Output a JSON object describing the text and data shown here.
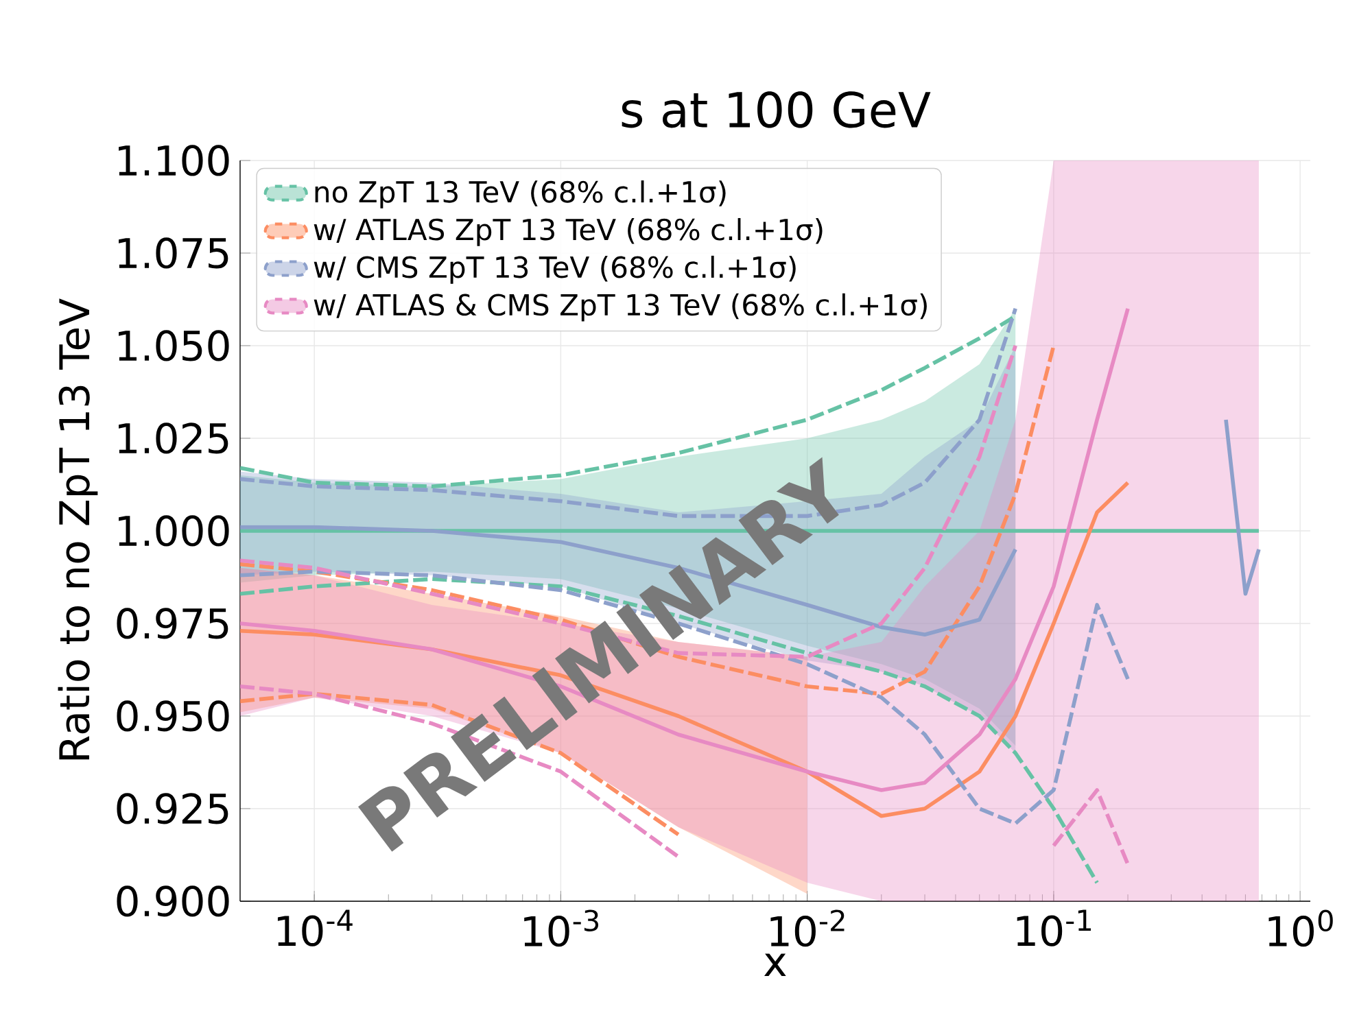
{
  "chart_data": {
    "type": "line",
    "title": "s at 100 GeV",
    "xlabel": "x",
    "ylabel": "Ratio to no ZpT 13 TeV",
    "annotations": [
      "PRELIMINARY"
    ],
    "log": "x",
    "grid": true,
    "legend": "top left",
    "line_style": "solid",
    "xlim": [
      5e-05,
      1.1
    ],
    "ylim": [
      0.9,
      1.1
    ],
    "xticks": [
      {
        "value": 0.0001,
        "label": "10$^{-4}$"
      },
      {
        "value": 0.001,
        "label": "10$^{-3}$"
      },
      {
        "value": 0.01,
        "label": "10$^{-2}$"
      },
      {
        "value": 0.1,
        "label": "10$^{-1}$"
      },
      {
        "value": 1,
        "label": "10$^{0}$"
      }
    ],
    "yticks": [
      {
        "value": 0.9,
        "label": "0.900"
      },
      {
        "value": 0.925,
        "label": "0.925"
      },
      {
        "value": 0.95,
        "label": "0.950"
      },
      {
        "value": 0.975,
        "label": "0.975"
      },
      {
        "value": 1.0,
        "label": "1.000"
      },
      {
        "value": 1.025,
        "label": "1.025"
      },
      {
        "value": 1.05,
        "label": "1.050"
      },
      {
        "value": 1.075,
        "label": "1.075"
      },
      {
        "value": 1.1,
        "label": "1.100"
      }
    ],
    "x": [
      5e-05,
      0.0001,
      0.0003,
      0.001,
      0.003,
      0.01,
      0.02,
      0.03,
      0.05,
      0.07,
      0.1,
      0.15,
      0.2,
      0.3,
      0.5,
      0.6,
      0.68
    ],
    "series": [
      {
        "name": "no ZpT 13 TeV (68% c.l.+1σ)",
        "color": "#66c2a5",
        "values": [
          1.0,
          1.0,
          1.0,
          1.0,
          1.0,
          1.0,
          1.0,
          1.0,
          1.0,
          1.0,
          1.0,
          1.0,
          1.0,
          1.0,
          1.0,
          1.0,
          1.0
        ],
        "upper": [
          1.015,
          1.013,
          1.012,
          1.014,
          1.02,
          1.025,
          1.03,
          1.035,
          1.045,
          1.06,
          null,
          null,
          null,
          null,
          null,
          null,
          null
        ],
        "lower": [
          0.986,
          0.988,
          0.989,
          0.987,
          0.979,
          0.969,
          0.964,
          0.96,
          0.952,
          0.942,
          null,
          null,
          null,
          null,
          null,
          null,
          null
        ]
      },
      {
        "color": "#66c2a5",
        "line_style": "dashed",
        "values": [
          1.017,
          1.013,
          1.012,
          1.015,
          1.021,
          1.03,
          1.038,
          1.044,
          1.052,
          1.058,
          null,
          null,
          null,
          null,
          null,
          null,
          null
        ]
      },
      {
        "color": "#66c2a5",
        "line_style": "dashed",
        "values": [
          0.983,
          0.985,
          0.987,
          0.985,
          0.977,
          0.967,
          0.962,
          0.958,
          0.95,
          0.94,
          0.925,
          0.905,
          null,
          null,
          null,
          null,
          null
        ]
      },
      {
        "name": "w/ ATLAS ZpT 13 TeV (68% c.l.+1σ)",
        "color": "#fc8d62",
        "values": [
          0.973,
          0.972,
          0.968,
          0.961,
          0.95,
          0.935,
          0.923,
          0.925,
          0.935,
          0.95,
          0.975,
          1.005,
          1.013,
          null,
          null,
          null,
          null
        ],
        "upper": [
          0.99,
          0.988,
          0.983,
          0.977,
          0.97,
          0.966,
          null,
          null,
          null,
          null,
          null,
          null,
          null,
          null,
          null,
          null,
          null
        ],
        "lower": [
          0.951,
          0.955,
          0.952,
          0.94,
          0.92,
          0.902,
          null,
          null,
          null,
          null,
          null,
          null,
          null,
          null,
          null,
          null,
          null
        ]
      },
      {
        "color": "#fc8d62",
        "line_style": "dashed",
        "values": [
          0.991,
          0.989,
          0.984,
          0.976,
          0.966,
          0.958,
          0.956,
          0.962,
          0.985,
          1.01,
          1.05,
          null,
          null,
          null,
          null,
          null,
          null
        ]
      },
      {
        "color": "#fc8d62",
        "line_style": "dashed",
        "values": [
          0.954,
          0.956,
          0.953,
          0.94,
          0.918,
          null,
          null,
          null,
          null,
          null,
          null,
          null,
          null,
          null,
          null,
          null,
          null
        ]
      },
      {
        "name": "w/ CMS ZpT 13 TeV (68% c.l.+1σ)",
        "color": "#8da0cb",
        "values": [
          1.001,
          1.001,
          1.0,
          0.997,
          0.99,
          0.98,
          0.974,
          0.972,
          0.976,
          0.995,
          null,
          null,
          null,
          null,
          1.03,
          0.983,
          0.995
        ],
        "upper": [
          1.016,
          1.014,
          1.013,
          1.01,
          1.005,
          1.008,
          1.01,
          1.02,
          1.03,
          1.05,
          null,
          null,
          null,
          null,
          null,
          null,
          null
        ],
        "lower": [
          0.988,
          0.989,
          0.988,
          0.985,
          0.975,
          0.965,
          0.962,
          0.958,
          0.95,
          0.94,
          null,
          null,
          null,
          null,
          null,
          null,
          null
        ]
      },
      {
        "color": "#8da0cb",
        "line_style": "dashed",
        "values": [
          1.014,
          1.012,
          1.011,
          1.008,
          1.004,
          1.004,
          1.007,
          1.013,
          1.03,
          1.06,
          null,
          null,
          null,
          null,
          null,
          null,
          null
        ]
      },
      {
        "color": "#8da0cb",
        "line_style": "dashed",
        "values": [
          0.988,
          0.989,
          0.988,
          0.984,
          0.975,
          0.964,
          0.955,
          0.945,
          0.925,
          0.921,
          0.93,
          0.98,
          0.96,
          null,
          null,
          null,
          null
        ]
      },
      {
        "name": "w/ ATLAS & CMS ZpT 13 TeV (68% c.l.+1σ)",
        "color": "#e78ac3",
        "values": [
          0.975,
          0.973,
          0.968,
          0.958,
          0.945,
          0.935,
          0.93,
          0.932,
          0.945,
          0.96,
          0.985,
          1.03,
          1.06,
          null,
          null,
          null,
          null
        ],
        "upper": [
          0.99,
          0.988,
          0.98,
          0.975,
          0.97,
          0.966,
          0.97,
          0.985,
          1.0,
          1.03,
          1.1,
          1.1,
          1.1,
          1.1,
          1.1,
          1.1,
          1.1
        ],
        "lower": [
          0.95,
          0.955,
          0.95,
          0.94,
          0.92,
          0.905,
          0.9,
          0.9,
          0.9,
          0.9,
          0.9,
          0.9,
          0.9,
          0.9,
          0.9,
          0.9,
          0.9
        ]
      },
      {
        "color": "#e78ac3",
        "line_style": "dashed",
        "values": [
          0.992,
          0.99,
          0.983,
          0.975,
          0.967,
          0.966,
          0.975,
          0.99,
          1.02,
          1.05,
          null,
          null,
          null,
          null,
          null,
          null,
          null
        ]
      },
      {
        "color": "#e78ac3",
        "line_style": "dashed",
        "values": [
          0.958,
          0.956,
          0.948,
          0.935,
          0.912,
          null,
          null,
          null,
          null,
          null,
          0.915,
          0.93,
          0.91,
          null,
          null,
          null,
          null
        ]
      }
    ]
  }
}
